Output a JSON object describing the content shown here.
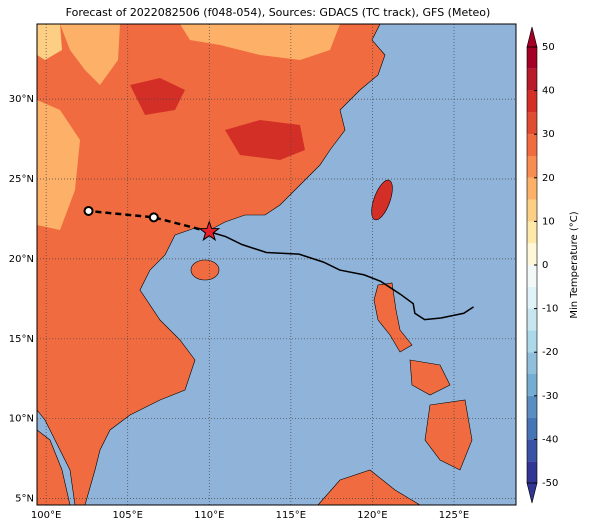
{
  "title": "Forecast of 2022082506 (f048-054), Sources: GDACS (TC track), GFS (Meteo)",
  "map": {
    "lonlim": [
      99.44,
      128.8
    ],
    "latlim": [
      4.6,
      34.7
    ],
    "lonticks": [
      {
        "value": 100,
        "label": "100°E"
      },
      {
        "value": 105,
        "label": "105°E"
      },
      {
        "value": 110,
        "label": "110°E"
      },
      {
        "value": 115,
        "label": "115°E"
      },
      {
        "value": 120,
        "label": "120°E"
      },
      {
        "value": 125,
        "label": "125°E"
      }
    ],
    "latticks": [
      {
        "value": 5,
        "label": "5°N"
      },
      {
        "value": 10,
        "label": "10°N"
      },
      {
        "value": 15,
        "label": "15°N"
      },
      {
        "value": 20,
        "label": "20°N"
      },
      {
        "value": 25,
        "label": "25°N"
      },
      {
        "value": 30,
        "label": "30°N"
      }
    ],
    "grid": true
  },
  "track": {
    "lon": [
      126.2,
      125.6,
      124.2,
      123.2,
      122.6,
      122.5,
      121.7,
      120.5,
      119.5,
      118.0,
      117.0,
      115.5,
      113.5,
      112.0,
      111.0,
      110.0
    ],
    "lat": [
      17.0,
      16.6,
      16.3,
      16.2,
      16.6,
      17.2,
      17.8,
      18.6,
      19.0,
      19.3,
      19.8,
      20.3,
      20.4,
      20.9,
      21.4,
      21.7
    ]
  },
  "forecast": {
    "lon": [
      110.0,
      106.6,
      102.6
    ],
    "lat": [
      21.7,
      22.6,
      23.0
    ]
  },
  "colorbar": {
    "label": "Min Temperature (°C)",
    "lim": [
      -50,
      50
    ],
    "ticks": [
      50,
      40,
      30,
      20,
      10,
      0,
      -10,
      -20,
      -30,
      -40,
      -50
    ],
    "levels": [
      -50,
      -45,
      -40,
      -35,
      -30,
      -25,
      -20,
      -15,
      -10,
      -5,
      0,
      5,
      10,
      15,
      20,
      25,
      30,
      35,
      40,
      45,
      50
    ],
    "colors": [
      "#313695",
      "#3a52a3",
      "#4575b4",
      "#5a8dc1",
      "#74add1",
      "#8fbfdb",
      "#abd9e9",
      "#c7e6f0",
      "#e0f3f8",
      "#f2f9f6",
      "#fff8d8",
      "#fee9a8",
      "#fdcf84",
      "#fdb168",
      "#f88d52",
      "#f06c40",
      "#e04c32",
      "#d32f27",
      "#b81b2a",
      "#a50026"
    ]
  }
}
